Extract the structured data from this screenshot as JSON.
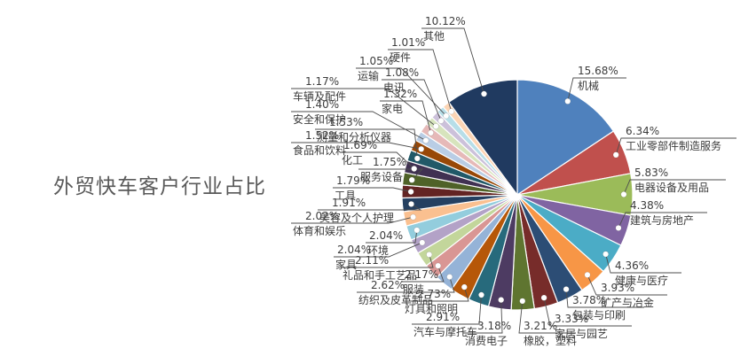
{
  "title": "外贸快车客户行业占比",
  "chart_data": {
    "type": "pie",
    "title": "外贸快车客户行业占比",
    "unit": "%",
    "start_angle": "12-oclock",
    "direction": "clockwise",
    "legend_position": "none (leader-line labels around pie)",
    "label_format": "percent above industry name, connected by leader line with white dot",
    "slices": [
      {
        "label": "机械",
        "value": 15.68,
        "pct": "15.68%",
        "color": "#4F81BD"
      },
      {
        "label": "工业零部件制造服务",
        "value": 6.34,
        "pct": "6.34%",
        "color": "#C0504D"
      },
      {
        "label": "电器设备及用品",
        "value": 5.83,
        "pct": "5.83%",
        "color": "#9BBB59"
      },
      {
        "label": "建筑与房地产",
        "value": 4.38,
        "pct": "4.38%",
        "color": "#8064A2"
      },
      {
        "label": "健康与医疗",
        "value": 4.36,
        "pct": "4.36%",
        "color": "#4BACC6"
      },
      {
        "label": "矿产与冶金",
        "value": 3.93,
        "pct": "3.93%",
        "color": "#F79646"
      },
      {
        "label": "包装与印刷",
        "value": 3.78,
        "pct": "3.78%",
        "color": "#2C4D75"
      },
      {
        "label": "家居与园艺",
        "value": 3.33,
        "pct": "3.33%",
        "color": "#772C2A"
      },
      {
        "label": "橡胶，塑料",
        "value": 3.21,
        "pct": "3.21%",
        "color": "#5F7530"
      },
      {
        "label": "消费电子",
        "value": 3.18,
        "pct": "3.18%",
        "color": "#4D3B62"
      },
      {
        "label": "汽车与摩托车",
        "value": 2.91,
        "pct": "2.91%",
        "color": "#276A7C"
      },
      {
        "label": "灯具和照明",
        "value": 2.73,
        "pct": "2.73%",
        "color": "#B65708"
      },
      {
        "label": "纺织及皮革制品",
        "value": 2.62,
        "pct": "2.62%",
        "color": "#95B3D7"
      },
      {
        "label": "服装",
        "value": 2.17,
        "pct": "2.17%",
        "color": "#D99694"
      },
      {
        "label": "礼品和手工艺品",
        "value": 2.11,
        "pct": "2.11%",
        "color": "#C3D69B"
      },
      {
        "label": "家具",
        "value": 2.04,
        "pct": "2.04%",
        "color": "#B3A2C7"
      },
      {
        "label": "环境",
        "value": 2.04,
        "pct": "2.04%",
        "color": "#93CDDD"
      },
      {
        "label": "体育和娱乐",
        "value": 2.02,
        "pct": "2.02%",
        "color": "#FAC090"
      },
      {
        "label": "美容及个人护理",
        "value": 1.91,
        "pct": "1.91%",
        "color": "#254061"
      },
      {
        "label": "工具",
        "value": 1.79,
        "pct": "1.79%",
        "color": "#632423"
      },
      {
        "label": "服务设备",
        "value": 1.75,
        "pct": "1.75%",
        "color": "#4F6228"
      },
      {
        "label": "化工",
        "value": 1.69,
        "pct": "1.69%",
        "color": "#403152"
      },
      {
        "label": "测量和分析仪器",
        "value": 1.53,
        "pct": "1.53%",
        "color": "#215968"
      },
      {
        "label": "食品和饮料",
        "value": 1.52,
        "pct": "1.52%",
        "color": "#984807"
      },
      {
        "label": "安全和保护",
        "value": 1.4,
        "pct": "1.40%",
        "color": "#B9CDE5"
      },
      {
        "label": "家电",
        "value": 1.32,
        "pct": "1.32%",
        "color": "#E6B9B8"
      },
      {
        "label": "车辆及配件",
        "value": 1.17,
        "pct": "1.17%",
        "color": "#D7E4BD"
      },
      {
        "label": "电讯",
        "value": 1.08,
        "pct": "1.08%",
        "color": "#CCC1DA"
      },
      {
        "label": "运输",
        "value": 1.05,
        "pct": "1.05%",
        "color": "#B7DEE8"
      },
      {
        "label": "硬件",
        "value": 1.01,
        "pct": "1.01%",
        "color": "#FCD5B5"
      },
      {
        "label": "其他",
        "value": 10.12,
        "pct": "10.12%",
        "color": "#203A60"
      }
    ]
  }
}
